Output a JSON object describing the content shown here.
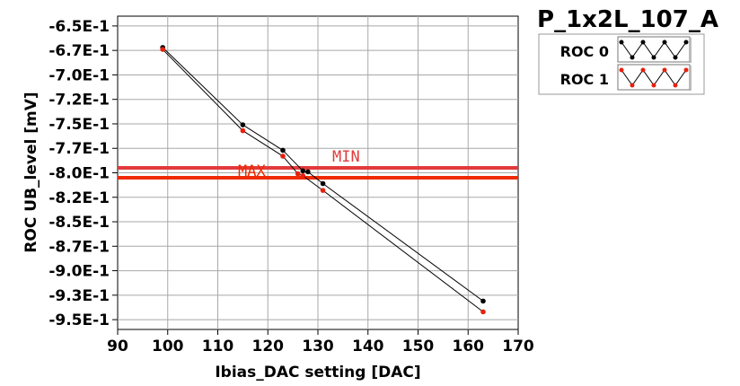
{
  "chart_data": {
    "type": "line",
    "title": "P_1x2L_107_A",
    "xlabel": "Ibias_DAC setting [DAC]",
    "ylabel": "ROC UB_level [mV]",
    "xlim": [
      90,
      170
    ],
    "ylim": [
      -0.96,
      -0.64
    ],
    "x_ticks": [
      90,
      100,
      110,
      120,
      130,
      140,
      150,
      160,
      170
    ],
    "x_tick_labels": [
      "90",
      "100",
      "110",
      "120",
      "130",
      "140",
      "150",
      "160",
      "170"
    ],
    "y_ticks": [
      -0.65,
      -0.675,
      -0.7,
      -0.725,
      -0.75,
      -0.775,
      -0.8,
      -0.825,
      -0.85,
      -0.875,
      -0.9,
      -0.925,
      -0.95
    ],
    "y_tick_labels": [
      "-6.5E-1",
      "-6.7E-1",
      "-7.0E-1",
      "-7.2E-1",
      "-7.5E-1",
      "-7.7E-1",
      "-8.0E-1",
      "-8.2E-1",
      "-8.5E-1",
      "-8.7E-1",
      "-9.0E-1",
      "-9.3E-1",
      "-9.5E-1"
    ],
    "grid": true,
    "legend_position": "top-right",
    "series": [
      {
        "name": "ROC 0",
        "color": "#000000",
        "x": [
          99,
          115,
          123,
          127,
          128,
          131,
          163
        ],
        "y": [
          -0.672,
          -0.751,
          -0.777,
          -0.798,
          -0.799,
          -0.811,
          -0.931
        ]
      },
      {
        "name": "ROC 1",
        "color": "#e8200c",
        "x": [
          99,
          115,
          123,
          126,
          127,
          131,
          163
        ],
        "y": [
          -0.674,
          -0.757,
          -0.783,
          -0.801,
          -0.803,
          -0.818,
          -0.942
        ]
      }
    ],
    "thresholds": [
      {
        "label": "MIN",
        "value": -0.795,
        "color": "#e23b3b"
      },
      {
        "label": "MAX",
        "value": -0.805,
        "color": "#f02a00"
      }
    ]
  }
}
